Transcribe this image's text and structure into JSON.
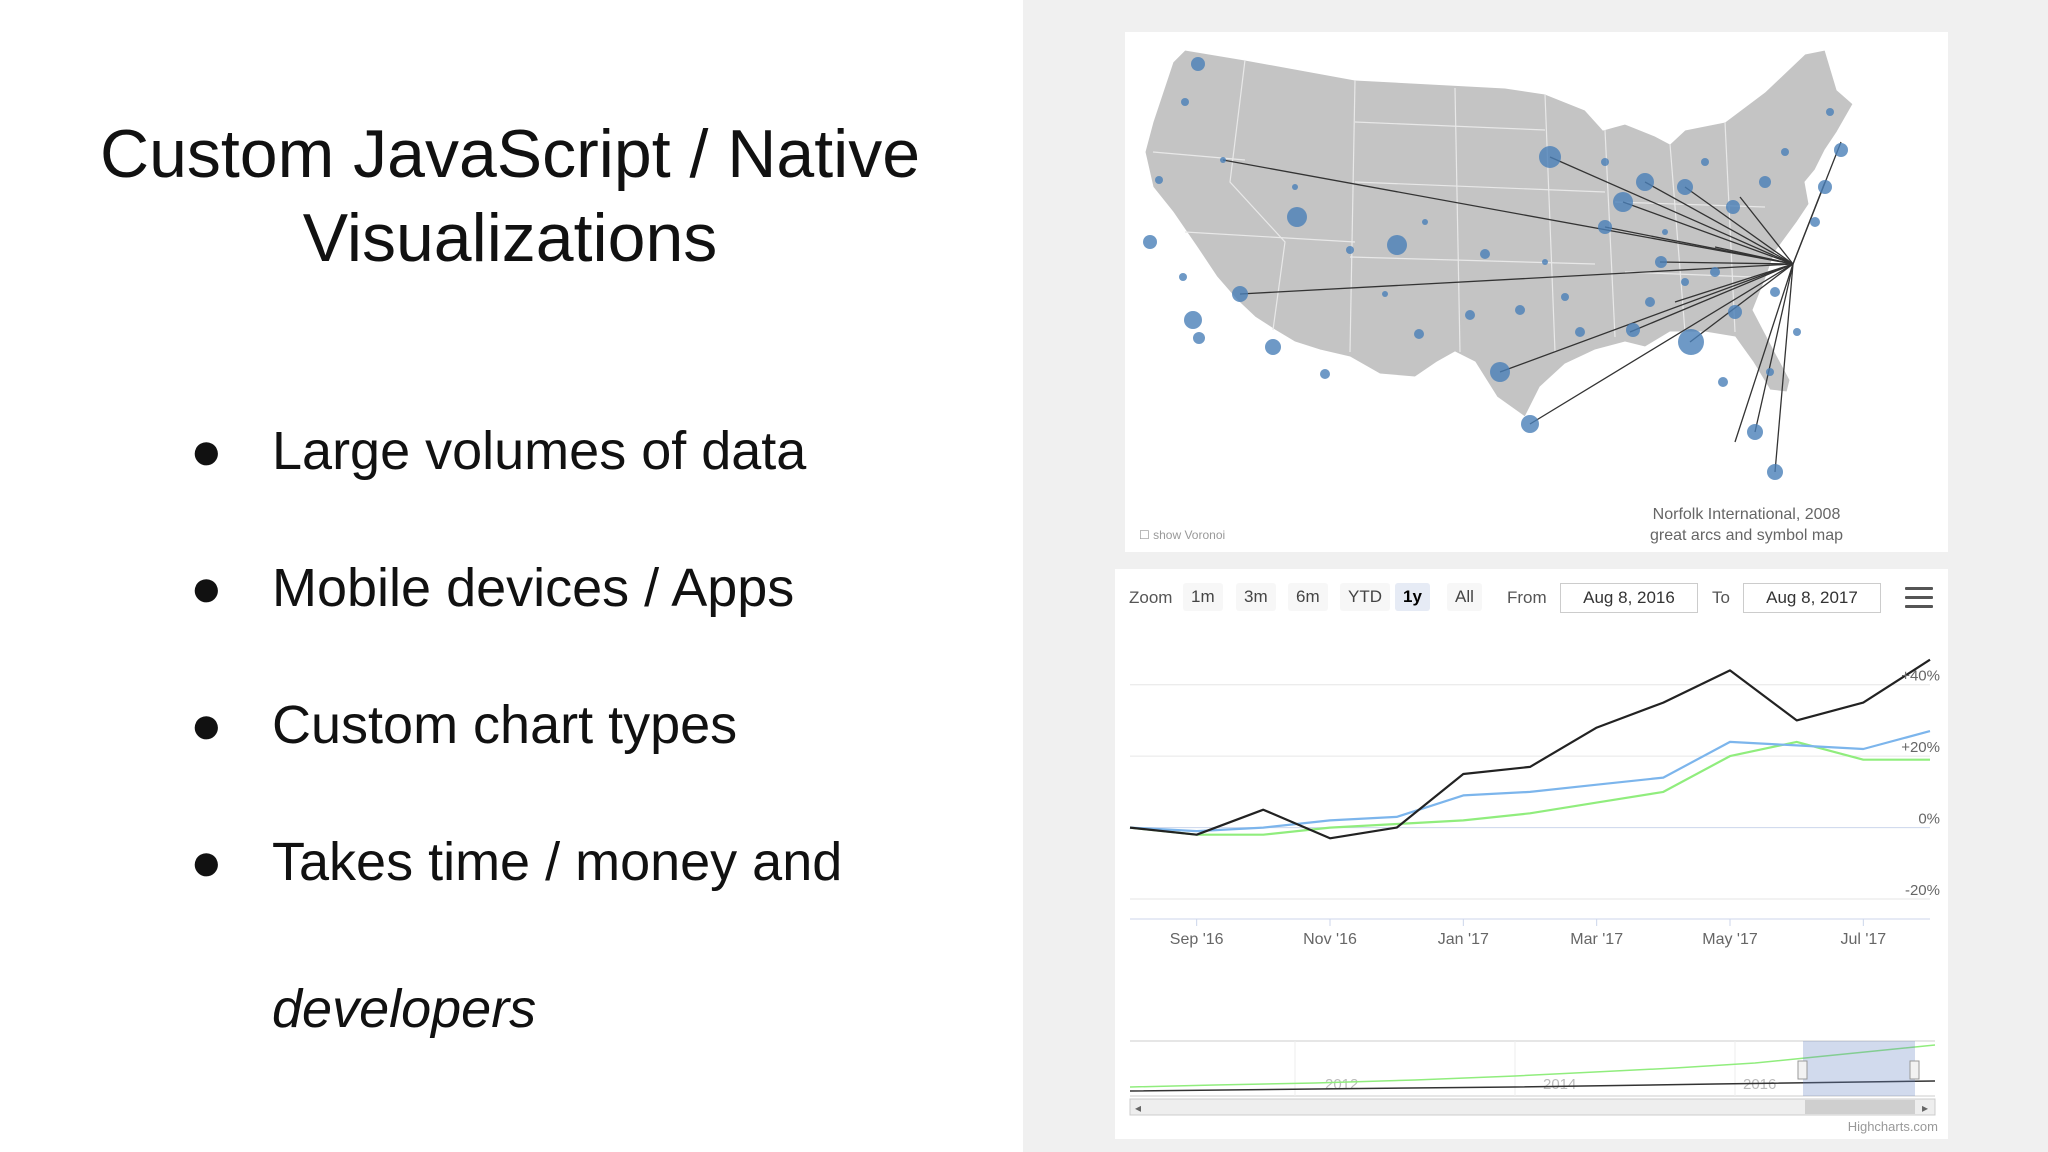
{
  "slide": {
    "title_line1": "Custom JavaScript / Native",
    "title_line2": "Visualizations",
    "bullet_char": "●",
    "bullets": [
      {
        "text": "Large volumes of data"
      },
      {
        "text": "Mobile devices / Apps"
      },
      {
        "text": "Custom chart types"
      },
      {
        "text": "Takes time / money and"
      }
    ],
    "continuation": "developers"
  },
  "map": {
    "caption_line1": "Norfolk International, 2008",
    "caption_line2": "great arcs and symbol map",
    "toggle_label": "show Voronoi",
    "land_color": "#c4c4c4",
    "symbol_color": "#4a7fb8"
  },
  "stock": {
    "zoom_label": "Zoom",
    "zoom_buttons": [
      "1m",
      "3m",
      "6m",
      "YTD",
      "1y",
      "All"
    ],
    "selected_zoom": "1y",
    "from_label": "From",
    "from_value": "Aug 8, 2016",
    "to_label": "To",
    "to_value": "Aug 8, 2017",
    "credit": "Highcharts.com",
    "navigator_years": [
      "2012",
      "2014",
      "2016"
    ],
    "colors": {
      "series_black": "#222222",
      "series_blue": "#7cb5ec",
      "series_green": "#90ed7d"
    }
  },
  "chart_data": {
    "type": "line",
    "x": [
      "Aug '16",
      "Sep '16",
      "Oct '16",
      "Nov '16",
      "Dec '16",
      "Jan '17",
      "Feb '17",
      "Mar '17",
      "Apr '17",
      "May '17",
      "Jun '17",
      "Jul '17",
      "Aug '17"
    ],
    "x_ticks": [
      "Sep '16",
      "Nov '16",
      "Jan '17",
      "Mar '17",
      "May '17",
      "Jul '17"
    ],
    "y_ticks": [
      "+40%",
      "+20%",
      "0%",
      "-20%"
    ],
    "ylim": [
      -20,
      50
    ],
    "series": [
      {
        "values": [
          0,
          -2,
          5,
          -3,
          0,
          15,
          17,
          28,
          35,
          44,
          30,
          35,
          47
        ]
      },
      {
        "values": [
          0,
          -1,
          0,
          2,
          3,
          9,
          10,
          12,
          14,
          24,
          23,
          22,
          27
        ]
      },
      {
        "values": [
          0,
          -2,
          -2,
          0,
          1,
          2,
          4,
          7,
          10,
          20,
          24,
          19,
          19
        ]
      }
    ]
  }
}
